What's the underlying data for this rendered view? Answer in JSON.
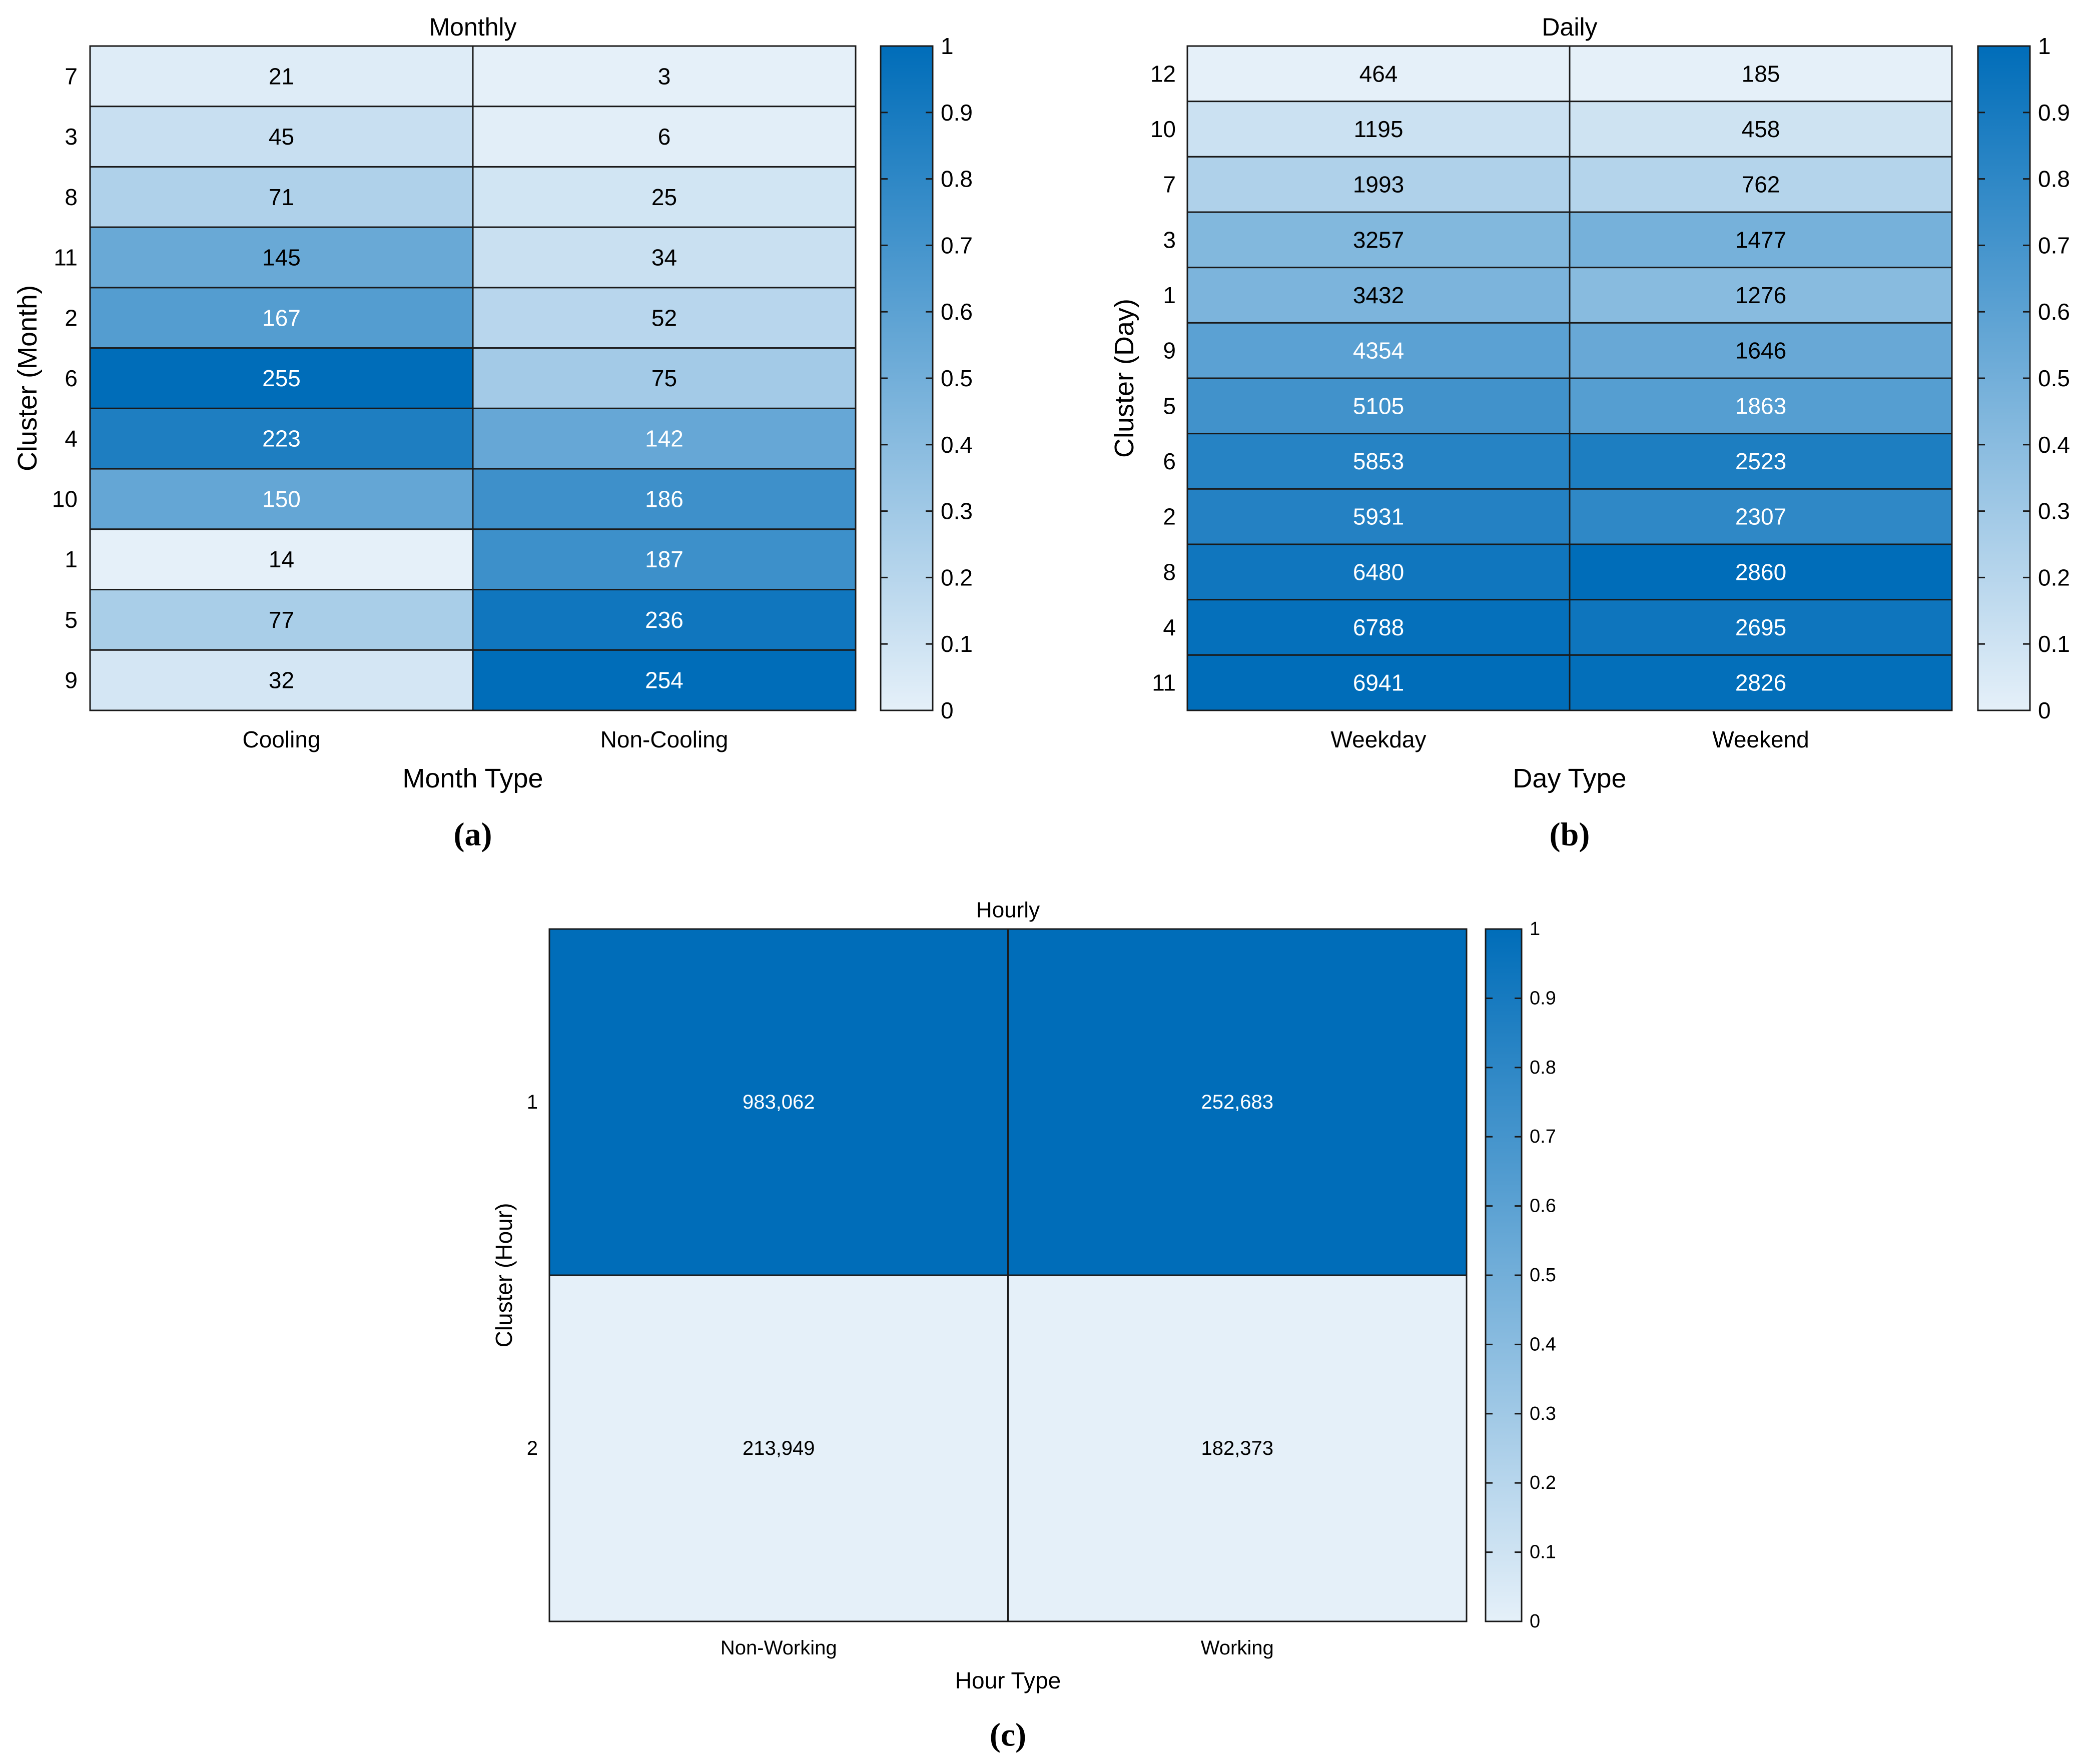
{
  "chart_data": [
    {
      "id": "a",
      "type": "heatmap",
      "title": "Monthly",
      "panel_label": "(a)",
      "xlabel": "Month Type",
      "ylabel": "Cluster (Month)",
      "columns": [
        "Cooling",
        "Non-Cooling"
      ],
      "rows": [
        "7",
        "3",
        "8",
        "11",
        "2",
        "6",
        "4",
        "10",
        "1",
        "5",
        "9"
      ],
      "values": [
        [
          "21",
          "3"
        ],
        [
          "45",
          "6"
        ],
        [
          "71",
          "25"
        ],
        [
          "145",
          "34"
        ],
        [
          "167",
          "52"
        ],
        [
          "255",
          "75"
        ],
        [
          "223",
          "142"
        ],
        [
          "150",
          "186"
        ],
        [
          "14",
          "187"
        ],
        [
          "77",
          "236"
        ],
        [
          "32",
          "254"
        ]
      ],
      "colorbar": {
        "range": [
          0,
          1
        ],
        "ticks": [
          "0",
          "0.1",
          "0.2",
          "0.3",
          "0.4",
          "0.5",
          "0.6",
          "0.7",
          "0.8",
          "0.9",
          "1"
        ]
      },
      "normalization": "per-column min-max"
    },
    {
      "id": "b",
      "type": "heatmap",
      "title": "Daily",
      "panel_label": "(b)",
      "xlabel": "Day Type",
      "ylabel": "Cluster (Day)",
      "columns": [
        "Weekday",
        "Weekend"
      ],
      "rows": [
        "12",
        "10",
        "7",
        "3",
        "1",
        "9",
        "5",
        "6",
        "2",
        "8",
        "4",
        "11"
      ],
      "values": [
        [
          "464",
          "185"
        ],
        [
          "1195",
          "458"
        ],
        [
          "1993",
          "762"
        ],
        [
          "3257",
          "1477"
        ],
        [
          "3432",
          "1276"
        ],
        [
          "4354",
          "1646"
        ],
        [
          "5105",
          "1863"
        ],
        [
          "5853",
          "2523"
        ],
        [
          "5931",
          "2307"
        ],
        [
          "6480",
          "2860"
        ],
        [
          "6788",
          "2695"
        ],
        [
          "6941",
          "2826"
        ]
      ],
      "colorbar": {
        "range": [
          0,
          1
        ],
        "ticks": [
          "0",
          "0.1",
          "0.2",
          "0.3",
          "0.4",
          "0.5",
          "0.6",
          "0.7",
          "0.8",
          "0.9",
          "1"
        ]
      },
      "normalization": "per-column min-max"
    },
    {
      "id": "c",
      "type": "heatmap",
      "title": "Hourly",
      "panel_label": "(c)",
      "xlabel": "Hour Type",
      "ylabel": "Cluster (Hour)",
      "columns": [
        "Non-Working",
        "Working"
      ],
      "rows": [
        "1",
        "2"
      ],
      "values": [
        [
          "983,062",
          "252,683"
        ],
        [
          "213,949",
          "182,373"
        ]
      ],
      "colorbar": {
        "range": [
          0,
          1
        ],
        "ticks": [
          "0",
          "0.1",
          "0.2",
          "0.3",
          "0.4",
          "0.5",
          "0.6",
          "0.7",
          "0.8",
          "0.9",
          "1"
        ]
      },
      "normalization": "per-column min-max"
    }
  ],
  "colors": {
    "low": "#e5f0f9",
    "high": "#006db9",
    "grid": "#1a1a1a",
    "text_dark": "#000000",
    "text_light": "#ffffff"
  }
}
